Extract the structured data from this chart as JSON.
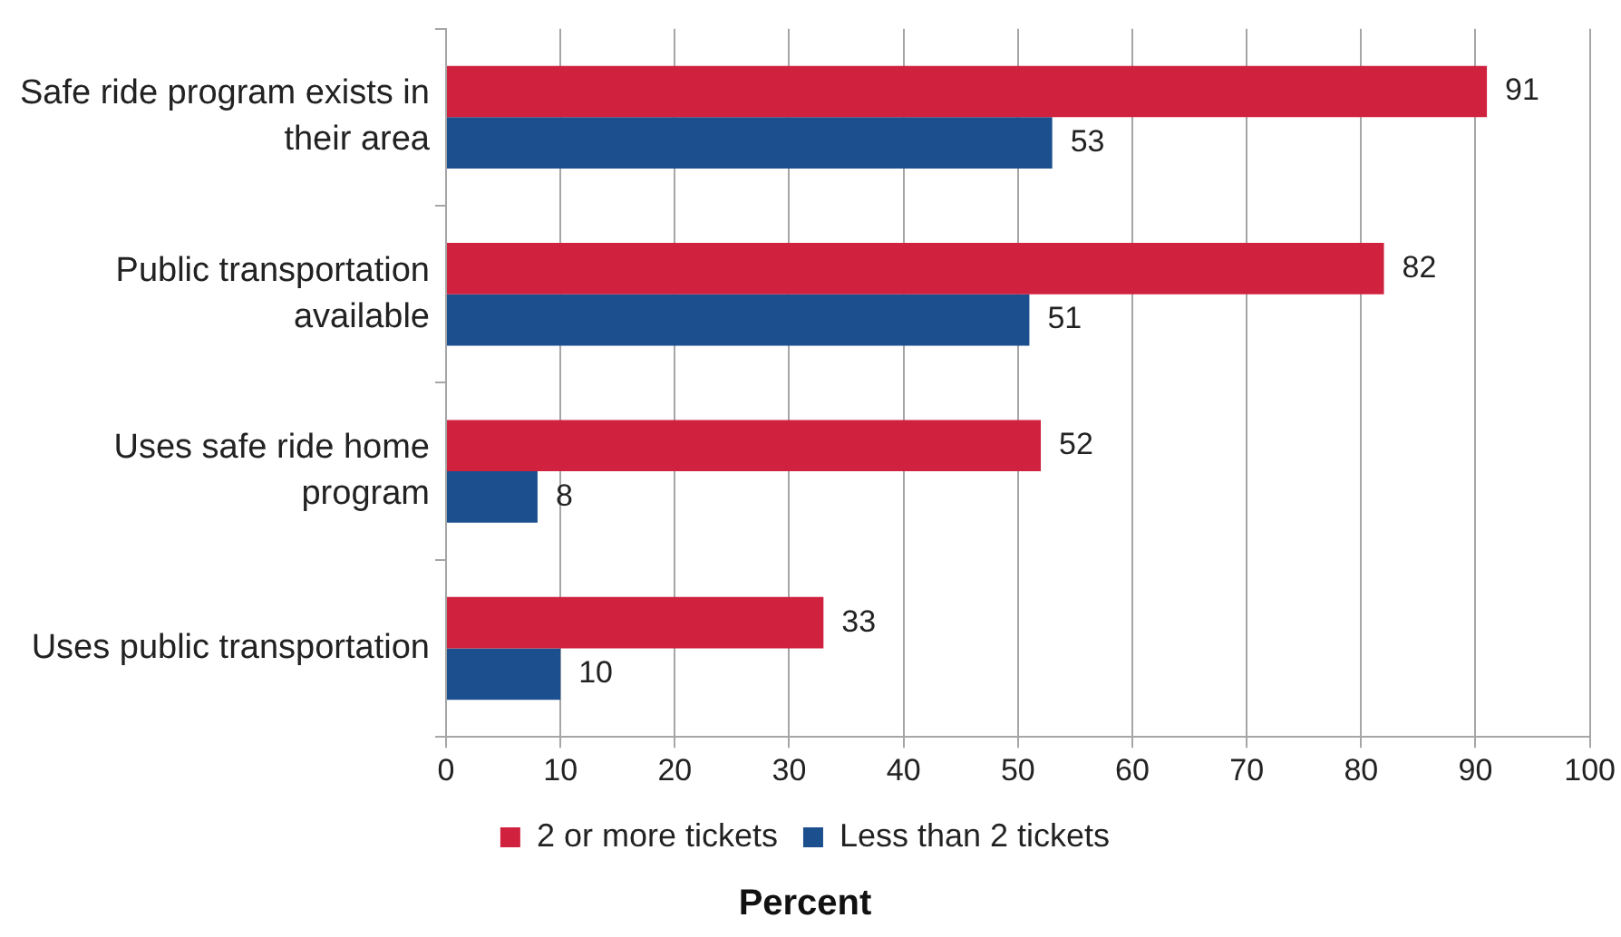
{
  "chart_data": {
    "type": "bar",
    "orientation": "horizontal",
    "xlabel": "Percent",
    "categories": [
      "Safe ride program exists in their area",
      "Public transportation available",
      "Uses safe ride home program",
      "Uses public transportation"
    ],
    "series": [
      {
        "name": "2 or more tickets",
        "color": "#d0213f",
        "values": [
          91,
          82,
          52,
          33
        ]
      },
      {
        "name": "Less than 2 tickets",
        "color": "#1b4f8e",
        "values": [
          53,
          51,
          8,
          10
        ]
      }
    ],
    "xlim": [
      0,
      100
    ],
    "xticks": [
      0,
      10,
      20,
      30,
      40,
      50,
      60,
      70,
      80,
      90,
      100
    ],
    "grid": "x",
    "legend": "bottom",
    "data_labels": true
  }
}
